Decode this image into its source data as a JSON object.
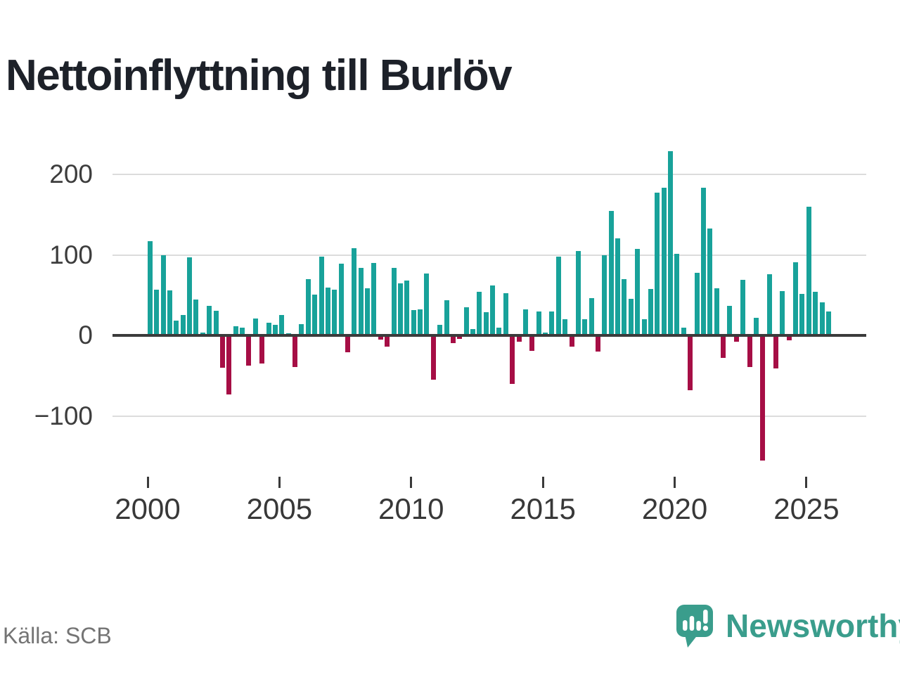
{
  "title": "Nettoinflyttning till Burlöv",
  "source": {
    "label": "Källa: SCB"
  },
  "branding": {
    "name": "Newsworthy",
    "accent_color": "#3a9d8c",
    "logo_icon": "speech-bubble-bar-chart-icon"
  },
  "chart_data": {
    "type": "bar",
    "title": "Nettoinflyttning till Burlöv",
    "frequency": "quarterly",
    "legend": "none",
    "grid": "horizontal",
    "positive_color": "#18a29a",
    "negative_color": "#a60e45",
    "x_axis": {
      "tick_labels": [
        "2000",
        "2005",
        "2010",
        "2015",
        "2020",
        "2025"
      ],
      "tick_years": [
        2000,
        2005,
        2010,
        2015,
        2020,
        2025
      ]
    },
    "y_axis": {
      "ticks": [
        {
          "label": "200",
          "value": 200
        },
        {
          "label": "100",
          "value": 100
        },
        {
          "label": "0",
          "value": 0
        },
        {
          "label": "−100",
          "value": -100
        }
      ],
      "range": [
        -160,
        240
      ]
    },
    "quarters": [
      "2000Q1",
      "2000Q2",
      "2000Q3",
      "2000Q4",
      "2001Q1",
      "2001Q2",
      "2001Q3",
      "2001Q4",
      "2002Q1",
      "2002Q2",
      "2002Q3",
      "2002Q4",
      "2003Q1",
      "2003Q2",
      "2003Q3",
      "2003Q4",
      "2004Q1",
      "2004Q2",
      "2004Q3",
      "2004Q4",
      "2005Q1",
      "2005Q2",
      "2005Q3",
      "2005Q4",
      "2006Q1",
      "2006Q2",
      "2006Q3",
      "2006Q4",
      "2007Q1",
      "2007Q2",
      "2007Q3",
      "2007Q4",
      "2008Q1",
      "2008Q2",
      "2008Q3",
      "2008Q4",
      "2009Q1",
      "2009Q2",
      "2009Q3",
      "2009Q4",
      "2010Q1",
      "2010Q2",
      "2010Q3",
      "2010Q4",
      "2011Q1",
      "2011Q2",
      "2011Q3",
      "2011Q4",
      "2012Q1",
      "2012Q2",
      "2012Q3",
      "2012Q4",
      "2013Q1",
      "2013Q2",
      "2013Q3",
      "2013Q4",
      "2014Q1",
      "2014Q2",
      "2014Q3",
      "2014Q4",
      "2015Q1",
      "2015Q2",
      "2015Q3",
      "2015Q4",
      "2016Q1",
      "2016Q2",
      "2016Q3",
      "2016Q4",
      "2017Q1",
      "2017Q2",
      "2017Q3",
      "2017Q4",
      "2018Q1",
      "2018Q2",
      "2018Q3",
      "2018Q4",
      "2019Q1",
      "2019Q2",
      "2019Q3",
      "2019Q4",
      "2020Q1",
      "2020Q2",
      "2020Q3",
      "2020Q4",
      "2021Q1",
      "2021Q2",
      "2021Q3",
      "2021Q4",
      "2022Q1",
      "2022Q2",
      "2022Q3",
      "2022Q4",
      "2023Q1",
      "2023Q2",
      "2023Q3",
      "2023Q4",
      "2024Q1",
      "2024Q2",
      "2024Q3",
      "2024Q4",
      "2025Q1",
      "2025Q2",
      "2025Q3",
      "2025Q4"
    ],
    "values": [
      117,
      57,
      100,
      56,
      19,
      26,
      97,
      45,
      4,
      37,
      31,
      -40,
      -73,
      12,
      10,
      -37,
      21,
      -35,
      16,
      13,
      26,
      3,
      -39,
      14,
      70,
      51,
      98,
      60,
      57,
      89,
      -21,
      109,
      84,
      59,
      90,
      -5,
      -14,
      84,
      65,
      68,
      32,
      33,
      77,
      -55,
      13,
      44,
      -9,
      -4,
      35,
      8,
      54,
      29,
      62,
      10,
      53,
      -60,
      -8,
      33,
      -19,
      30,
      4,
      30,
      98,
      20,
      -14,
      105,
      20,
      47,
      -20,
      100,
      155,
      121,
      70,
      46,
      108,
      20,
      58,
      178,
      184,
      229,
      102,
      10,
      -68,
      78,
      184,
      133,
      59,
      -28,
      37,
      -8,
      69,
      -39,
      22,
      -155,
      76,
      -41,
      55,
      -6,
      91,
      52,
      160,
      54,
      41,
      30
    ]
  }
}
